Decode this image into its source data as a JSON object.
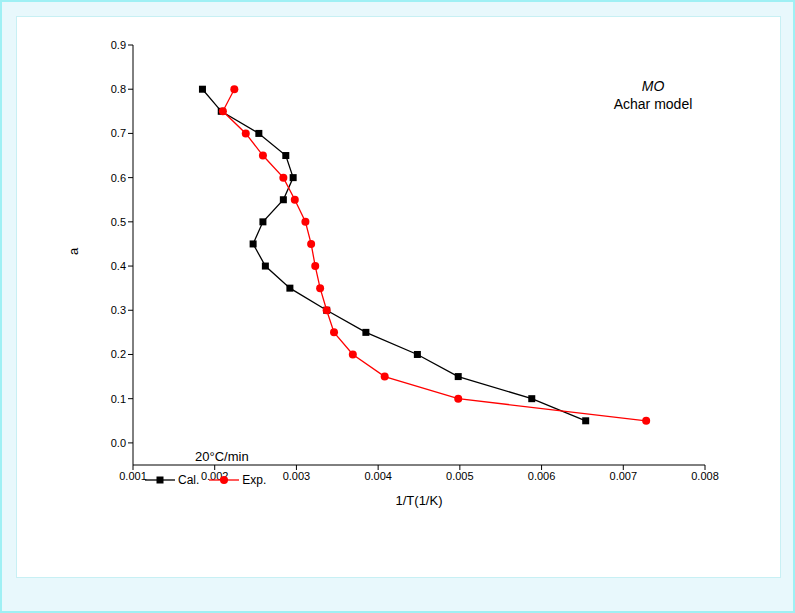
{
  "chart_data": {
    "type": "scatter",
    "title": "MO",
    "subtitle": "Achar model",
    "annotation": "20°C/min",
    "x_label": "1/T(1/K)",
    "y_label": "a",
    "xlim": [
      0.001,
      0.008
    ],
    "xticks": [
      0.001,
      0.002,
      0.003,
      0.004,
      0.005,
      0.006,
      0.007,
      0.008
    ],
    "ylim": [
      -0.05,
      0.9
    ],
    "yticks": [
      {
        "value": 0,
        "label": "0.0"
      },
      0.1,
      0.2,
      0.3,
      0.4,
      0.5,
      0.6,
      0.7,
      0.8,
      0.9
    ],
    "grid": false,
    "legend": "lower left",
    "series": [
      {
        "name": "Cal.",
        "color": "#000000",
        "marker": "square",
        "line_style": "solid",
        "x": [
          0.00185,
          0.00208,
          0.00254,
          0.00287,
          0.00296,
          0.00284,
          0.00259,
          0.00247,
          0.00262,
          0.00292,
          0.00337,
          0.00385,
          0.00448,
          0.00498,
          0.00588,
          0.00654
        ],
        "values": [
          0.8,
          0.75,
          0.7,
          0.65,
          0.6,
          0.55,
          0.5,
          0.45,
          0.4,
          0.35,
          0.3,
          0.25,
          0.2,
          0.15,
          0.1,
          0.05
        ]
      },
      {
        "name": "Exp.",
        "color": "#ff0000",
        "marker": "circle",
        "line_style": "solid",
        "x": [
          0.00224,
          0.0021,
          0.00238,
          0.00259,
          0.00284,
          0.00298,
          0.00311,
          0.00318,
          0.00323,
          0.00329,
          0.00337,
          0.00346,
          0.00369,
          0.00408,
          0.00498,
          0.00728
        ],
        "values": [
          0.8,
          0.75,
          0.7,
          0.65,
          0.6,
          0.55,
          0.5,
          0.45,
          0.4,
          0.35,
          0.3,
          0.25,
          0.2,
          0.15,
          0.1,
          0.05
        ]
      }
    ]
  }
}
